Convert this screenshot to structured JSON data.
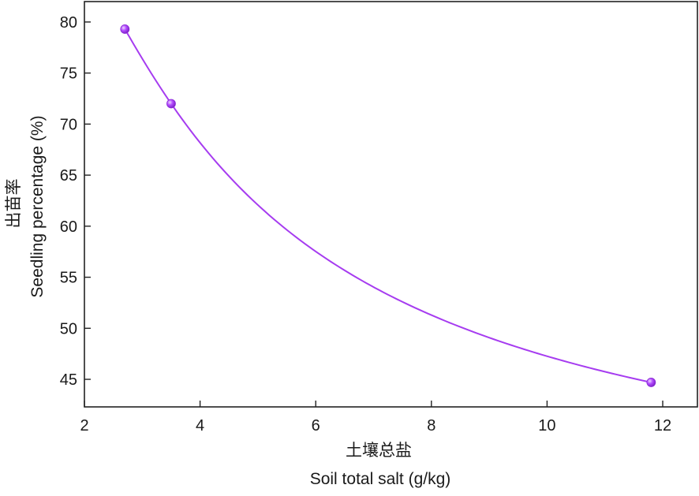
{
  "chart_data": {
    "type": "scatter",
    "xlabel_cn": "土壤总盐",
    "xlabel": "Soil total salt (g/kg)",
    "ylabel_cn": "出苗率",
    "ylabel": "Seedling percentage (%)",
    "xlim": [
      2,
      12.6
    ],
    "ylim": [
      42.3,
      82
    ],
    "x_ticks": [
      2,
      4,
      6,
      8,
      10,
      12
    ],
    "y_ticks": [
      45,
      50,
      55,
      60,
      65,
      70,
      75,
      80
    ],
    "grid": false,
    "series": [
      {
        "points": [
          {
            "x": 2.7,
            "y": 79.3
          },
          {
            "x": 3.5,
            "y": 72.0
          },
          {
            "x": 11.8,
            "y": 44.7
          }
        ],
        "fit_curve": true
      }
    ],
    "colors": {
      "line": "#a63cf0",
      "marker_fill": "#b44cff",
      "marker_highlight": "#e6c6ff",
      "axis": "#222222"
    }
  }
}
